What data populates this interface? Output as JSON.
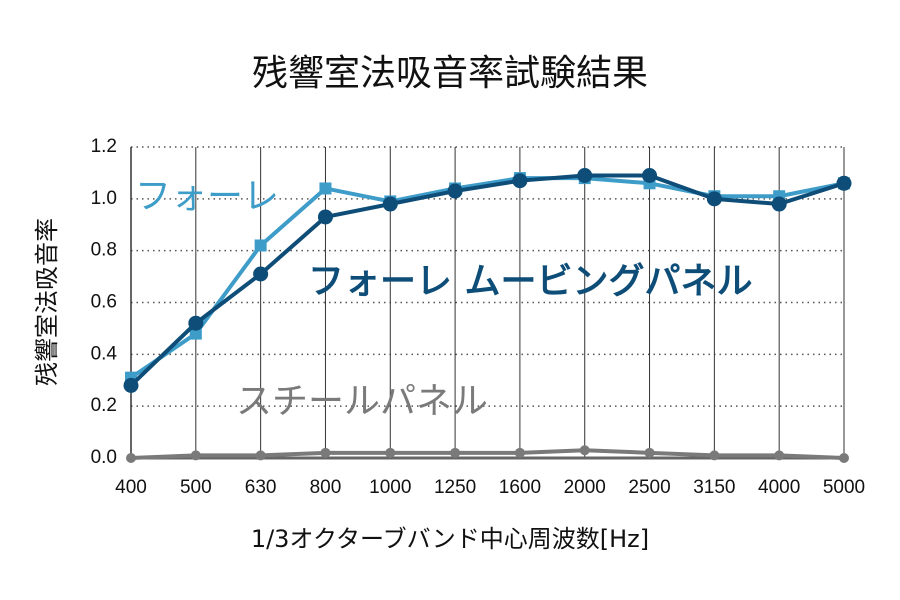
{
  "chart_data": {
    "type": "line",
    "title": "残響室法吸音率試験結果",
    "x_label": "1/3オクターブバンド中心周波数[Hz]",
    "y_label": "残響室法吸音率",
    "categories": [
      "400",
      "500",
      "630",
      "800",
      "1000",
      "1250",
      "1600",
      "2000",
      "2500",
      "3150",
      "4000",
      "5000"
    ],
    "series": [
      {
        "name": "フォーレ",
        "color": "#3e9cc9",
        "marker": "square",
        "values": [
          0.31,
          0.48,
          0.82,
          1.04,
          0.99,
          1.04,
          1.08,
          1.08,
          1.06,
          1.01,
          1.01,
          1.06
        ]
      },
      {
        "name": "フォーレ ムービングパネル",
        "color": "#0d4d78",
        "marker": "circle",
        "values": [
          0.28,
          0.52,
          0.71,
          0.93,
          0.98,
          1.03,
          1.07,
          1.09,
          1.09,
          1.0,
          0.98,
          1.06
        ]
      },
      {
        "name": "スチールパネル",
        "color": "#7a7a7a",
        "marker": "circle",
        "values": [
          0.0,
          0.01,
          0.01,
          0.02,
          0.02,
          0.02,
          0.02,
          0.03,
          0.02,
          0.01,
          0.01,
          0.0
        ]
      }
    ],
    "ylim": [
      0,
      1.2
    ],
    "yticks": [
      {
        "value": 0,
        "label": "0.0"
      },
      0.2,
      0.4,
      0.6,
      0.8,
      {
        "value": 1,
        "label": "1.0"
      },
      1.2
    ],
    "grid": true
  }
}
